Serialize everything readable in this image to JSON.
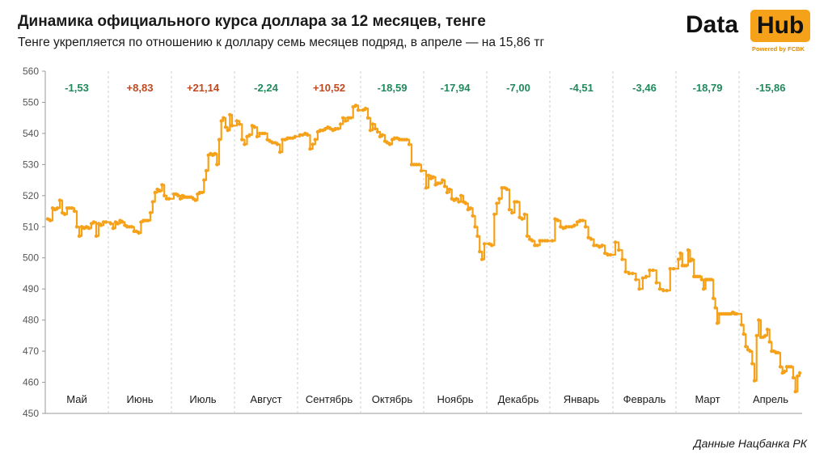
{
  "header": {
    "title": "Динамика официального курса доллара за 12 месяцев, тенге",
    "subtitle": "Тенге укрепляется по отношению к доллару семь месяцев подряд, в апреле — на 15,86 тг"
  },
  "logo": {
    "word1": "Data",
    "word2": "Hub",
    "powered": "Powered by FCBK",
    "accent_color": "#f5a21a"
  },
  "source": "Данные Нацбанка РК",
  "chart_data": {
    "type": "line",
    "ylim": [
      450,
      560
    ],
    "yticks": [
      "450",
      "460",
      "470",
      "480",
      "490",
      "500",
      "510",
      "520",
      "530",
      "540",
      "550",
      "560"
    ],
    "months": [
      "Май",
      "Июнь",
      "Июль",
      "Август",
      "Сентябрь",
      "Октябрь",
      "Ноябрь",
      "Декабрь",
      "Январь",
      "Февраль",
      "Март",
      "Апрель"
    ],
    "monthly_change": [
      "-1,53",
      "+8,83",
      "+21,14",
      "-2,24",
      "+10,52",
      "-18,59",
      "-17,94",
      "-7,00",
      "-4,51",
      "-3,46",
      "-18,79",
      "-15,86"
    ],
    "colors": {
      "line": "#f5a21a",
      "positive": "#c0481f",
      "negative": "#1f8a5c",
      "grid": "#cfcfcf"
    },
    "series": [
      {
        "values": [
          [
            512.5,
            512.0,
            516.0,
            515.5,
            516.0,
            518.5,
            514.5,
            514.0,
            516.0,
            516.0,
            516.0,
            515.0,
            510.0,
            507.0,
            510.0,
            509.5,
            510.0,
            509.5,
            511.0,
            511.5,
            507.0,
            511.0,
            510.5,
            511.5,
            511.5
          ],
          [
            511.0,
            509.5,
            511.5,
            511.0,
            512.0,
            511.5,
            510.5,
            510.0,
            510.0,
            510.0,
            508.5,
            508.5,
            508.0,
            511.5,
            512.0,
            512.0,
            512.0,
            514.5,
            518.0,
            521.0,
            522.0,
            521.5,
            523.5,
            520.0,
            519.0,
            519.0
          ],
          [
            520.5,
            520.5,
            520.0,
            519.0,
            520.0,
            519.5,
            519.5,
            519.5,
            519.5,
            519.0,
            518.5,
            520.5,
            521.0,
            521.0,
            525.0,
            528.0,
            533.0,
            533.5,
            533.0,
            533.5,
            530.0,
            538.0,
            544.0,
            545.0,
            542.0,
            541.0,
            546.0,
            542.5
          ],
          [
            544.0,
            543.0,
            538.0,
            536.5,
            539.0,
            539.5,
            542.5,
            542.0,
            539.0,
            540.0,
            540.0,
            540.0,
            538.0,
            537.5,
            537.0,
            537.0,
            536.5,
            534.0,
            538.0,
            538.0,
            538.5,
            538.5,
            538.5,
            539.0
          ],
          [
            539.5,
            539.5,
            540.0,
            539.5,
            535.0,
            536.5,
            538.0,
            540.5,
            541.0,
            541.0,
            541.5,
            542.0,
            541.5,
            541.0,
            541.5,
            541.5,
            543.0,
            545.0,
            544.0,
            545.0,
            545.0,
            548.5,
            549.0,
            547.5
          ],
          [
            547.5,
            548.0,
            545.0,
            541.0,
            543.0,
            541.5,
            540.5,
            539.0,
            539.5,
            537.5,
            537.0,
            536.5,
            538.0,
            538.5,
            538.5,
            538.0,
            538.0,
            538.0,
            538.0,
            536.5,
            530.0,
            530.0,
            530.0,
            530.0,
            528.0
          ],
          [
            522.5,
            526.5,
            525.5,
            526.0,
            523.5,
            524.0,
            524.0,
            525.0,
            523.0,
            521.0,
            522.0,
            519.0,
            518.5,
            519.0,
            518.0,
            520.0,
            518.0,
            517.5,
            515.5,
            516.0,
            513.5,
            510.0,
            507.0,
            502.0,
            499.5,
            504.5
          ],
          [
            504.5,
            504.0,
            514.0,
            517.5,
            519.0,
            522.5,
            522.5,
            522.0,
            515.5,
            514.5,
            518.0,
            518.0,
            513.0,
            512.5,
            514.0,
            507.0,
            506.0,
            505.5,
            504.0,
            504.0,
            505.5,
            505.5,
            505.5,
            505.5
          ],
          [
            505.5,
            512.5,
            512.0,
            510.0,
            509.5,
            510.0,
            510.0,
            510.0,
            510.5,
            511.5,
            512.0,
            512.0,
            510.0,
            506.5,
            506.0,
            504.0,
            504.0,
            503.5,
            504.0,
            501.5,
            501.0,
            501.0
          ],
          [
            505.0,
            502.5,
            499.5,
            495.5,
            495.0,
            495.0,
            493.0,
            490.0,
            493.5,
            494.0,
            496.0,
            496.0,
            492.0,
            490.0,
            489.5,
            489.5,
            496.5,
            496.5
          ],
          [
            499.5,
            501.5,
            497.5,
            497.5,
            497.5,
            502.5,
            499.0,
            499.5,
            494.0,
            494.0,
            494.0,
            494.0,
            493.0,
            490.0,
            493.0,
            493.0,
            493.0,
            493.0,
            487.0,
            484.0,
            479.0,
            482.0,
            482.0,
            482.0,
            482.0,
            482.0,
            482.0,
            482.0,
            482.5,
            482.0,
            482.0
          ],
          [
            478.5,
            475.5,
            471.5,
            470.5,
            470.0,
            466.0,
            460.5,
            475.0,
            480.0,
            474.5,
            474.5,
            475.0,
            477.0,
            473.0,
            470.0,
            470.0,
            469.5,
            469.5,
            465.0,
            463.0,
            463.5,
            465.0,
            465.0,
            465.0,
            461.5,
            457.0,
            462.0,
            463.0
          ]
        ]
      }
    ]
  }
}
